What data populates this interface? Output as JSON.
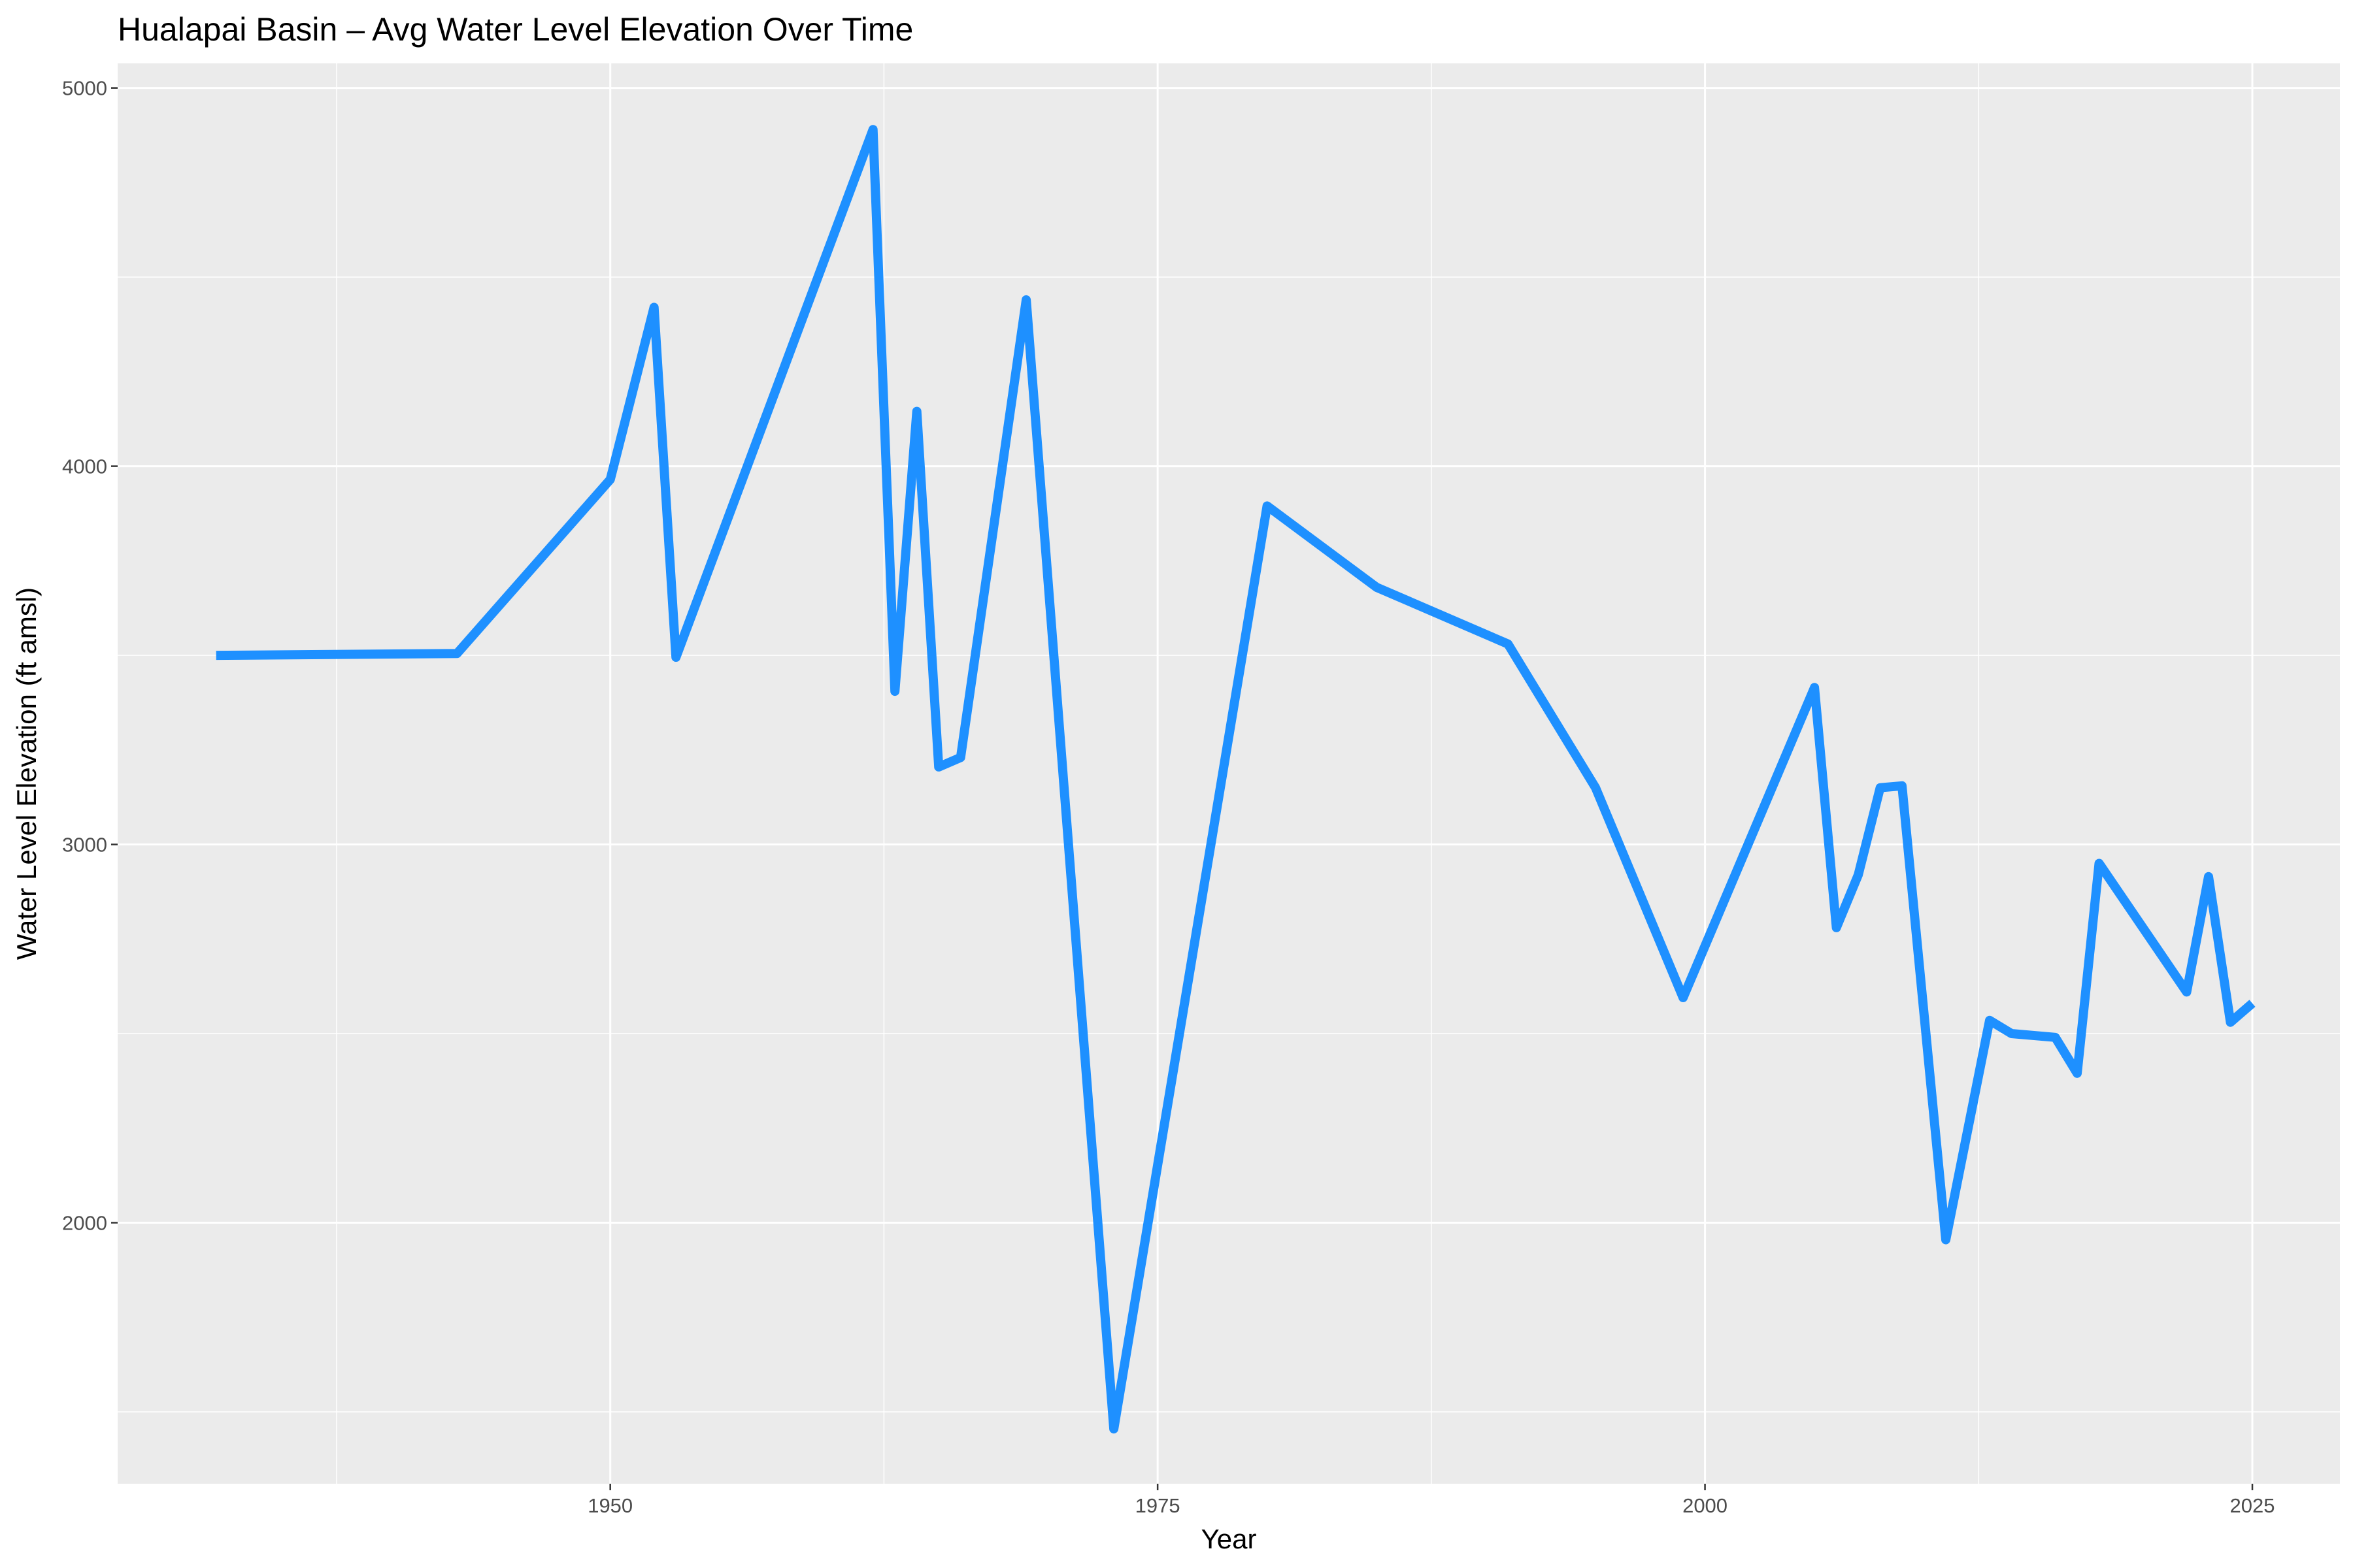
{
  "chart_data": {
    "type": "line",
    "title": "Hualapai Basin – Avg Water Level Elevation Over Time",
    "xlabel": "Year",
    "ylabel": "Water Level Elevation (ft amsl)",
    "xlim": [
      1927.5,
      2029.0
    ],
    "ylim": [
      1310,
      5065
    ],
    "x_ticks": [
      1950,
      1975,
      2000,
      2025
    ],
    "x_tick_labels": [
      "1950",
      "1975",
      "2000",
      "2025"
    ],
    "y_ticks": [
      2000,
      3000,
      4000,
      5000
    ],
    "y_tick_labels": [
      "2000",
      "3000",
      "4000",
      "5000"
    ],
    "grid": true,
    "legend": "none",
    "series": [
      {
        "color": "#1e90ff",
        "x": [
          1932,
          1943,
          1950,
          1952,
          1953,
          1962,
          1963,
          1964,
          1965,
          1966,
          1969,
          1973,
          1980,
          1985,
          1991,
          1995,
          1999,
          2005,
          2006,
          2007,
          2008,
          2009,
          2011,
          2013,
          2014,
          2016,
          2017,
          2018,
          2022,
          2023,
          2024,
          2025
        ],
        "y": [
          3500,
          3505,
          3965,
          4420,
          3495,
          4890,
          3405,
          4145,
          3205,
          3230,
          4440,
          1455,
          3895,
          3680,
          3530,
          3150,
          2595,
          3415,
          2780,
          2920,
          3150,
          3155,
          1955,
          2535,
          2500,
          2490,
          2395,
          2950,
          2610,
          2915,
          2530,
          2580
        ]
      }
    ]
  }
}
